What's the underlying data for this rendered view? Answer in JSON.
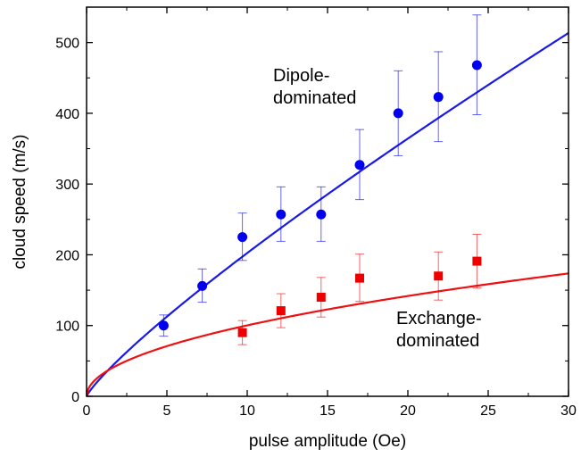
{
  "chart_data": {
    "type": "scatter",
    "xlabel": "pulse amplitude (Oe)",
    "ylabel": "cloud speed (m/s)",
    "xlim": [
      0,
      30
    ],
    "ylim": [
      0,
      550
    ],
    "x_ticks": [
      0,
      5,
      10,
      15,
      20,
      25,
      30
    ],
    "y_ticks": [
      0,
      100,
      200,
      300,
      400,
      500
    ],
    "x_tick_labels": [
      "0",
      "5",
      "10",
      "15",
      "20",
      "25",
      "30"
    ],
    "y_tick_labels": [
      "0",
      "100",
      "200",
      "300",
      "400",
      "500"
    ],
    "grid": false,
    "series": [
      {
        "marker": "circle",
        "color": "#0000ee",
        "points": [
          {
            "x": 4.8,
            "y": 100,
            "err_low": 85,
            "err_high": 115
          },
          {
            "x": 7.2,
            "y": 156,
            "err_low": 133,
            "err_high": 180
          },
          {
            "x": 9.7,
            "y": 225,
            "err_low": 192,
            "err_high": 259
          },
          {
            "x": 12.1,
            "y": 257,
            "err_low": 219,
            "err_high": 296
          },
          {
            "x": 14.6,
            "y": 257,
            "err_low": 219,
            "err_high": 296
          },
          {
            "x": 17.0,
            "y": 327,
            "err_low": 278,
            "err_high": 377
          },
          {
            "x": 19.4,
            "y": 400,
            "err_low": 340,
            "err_high": 460
          },
          {
            "x": 21.9,
            "y": 423,
            "err_low": 360,
            "err_high": 487
          },
          {
            "x": 24.3,
            "y": 468,
            "err_low": 398,
            "err_high": 539
          }
        ],
        "fit": {
          "coefficient": 28.8,
          "exponent": 0.847,
          "color": "#1a1ae6"
        }
      },
      {
        "marker": "square",
        "color": "#ee0000",
        "points": [
          {
            "x": 9.7,
            "y": 90,
            "err_low": 73,
            "err_high": 107
          },
          {
            "x": 12.1,
            "y": 121,
            "err_low": 97,
            "err_high": 145
          },
          {
            "x": 14.6,
            "y": 140,
            "err_low": 112,
            "err_high": 168
          },
          {
            "x": 17.0,
            "y": 167,
            "err_low": 134,
            "err_high": 201
          },
          {
            "x": 21.9,
            "y": 170,
            "err_low": 136,
            "err_high": 204
          },
          {
            "x": 24.3,
            "y": 191,
            "err_low": 153,
            "err_high": 229
          }
        ],
        "fit": {
          "coefficient": 31.7,
          "exponent": 0.5,
          "color": "#ee1111"
        }
      }
    ],
    "annotations": [
      {
        "lines": [
          "Dipole-",
          "dominated"
        ]
      },
      {
        "lines": [
          "Exchange-",
          "dominated"
        ]
      }
    ]
  }
}
